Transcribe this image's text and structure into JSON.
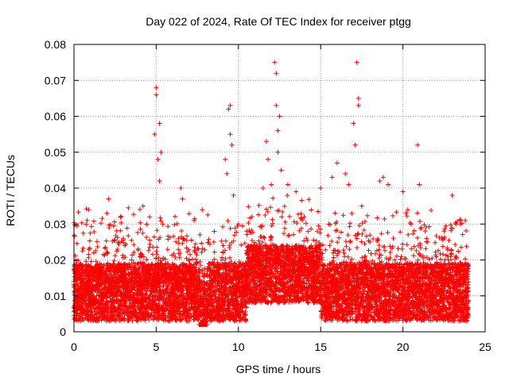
{
  "chart_data": {
    "type": "scatter",
    "title": "Day 022 of 2024, Rate Of TEC Index for receiver ptgg",
    "xlabel": "GPS time / hours",
    "ylabel": "ROTI / TECUs",
    "xlim": [
      0,
      25
    ],
    "ylim": [
      0,
      0.08
    ],
    "x_ticks": [
      "0",
      "5",
      "10",
      "15",
      "20",
      "25"
    ],
    "y_ticks": [
      "0",
      "0.01",
      "0.02",
      "0.03",
      "0.04",
      "0.05",
      "0.06",
      "0.07",
      "0.08"
    ],
    "grid": true,
    "marker": "+",
    "color": "#ff0000",
    "series": [
      {
        "points": [
          [
            0.3,
            0.008
          ],
          [
            0.5,
            0.012
          ],
          [
            0.8,
            0.031
          ],
          [
            0.9,
            0.034
          ],
          [
            1.2,
            0.022
          ],
          [
            1.5,
            0.018
          ],
          [
            2.0,
            0.033
          ],
          [
            2.1,
            0.037
          ],
          [
            2.5,
            0.015
          ],
          [
            3.0,
            0.026
          ],
          [
            3.5,
            0.02
          ],
          [
            4.2,
            0.035
          ],
          [
            4.6,
            0.032
          ],
          [
            4.9,
            0.055
          ],
          [
            5.0,
            0.068
          ],
          [
            5.0,
            0.066
          ],
          [
            5.1,
            0.048
          ],
          [
            5.2,
            0.058
          ],
          [
            5.3,
            0.05
          ],
          [
            5.2,
            0.042
          ],
          [
            5.4,
            0.03
          ],
          [
            5.8,
            0.018
          ],
          [
            6.5,
            0.04
          ],
          [
            6.6,
            0.037
          ],
          [
            7.0,
            0.02
          ],
          [
            7.5,
            0.012
          ],
          [
            7.8,
            0.034
          ],
          [
            8.2,
            0.01
          ],
          [
            8.5,
            0.025
          ],
          [
            9.0,
            0.02
          ],
          [
            9.2,
            0.048
          ],
          [
            9.3,
            0.044
          ],
          [
            9.4,
            0.062
          ],
          [
            9.5,
            0.063
          ],
          [
            9.5,
            0.055
          ],
          [
            9.6,
            0.052
          ],
          [
            9.7,
            0.038
          ],
          [
            10.0,
            0.03
          ],
          [
            10.5,
            0.028
          ],
          [
            11.0,
            0.02
          ],
          [
            11.5,
            0.04
          ],
          [
            11.7,
            0.053
          ],
          [
            11.8,
            0.048
          ],
          [
            12.0,
            0.041
          ],
          [
            12.2,
            0.075
          ],
          [
            12.3,
            0.072
          ],
          [
            12.3,
            0.063
          ],
          [
            12.4,
            0.056
          ],
          [
            12.4,
            0.05
          ],
          [
            12.5,
            0.06
          ],
          [
            12.6,
            0.045
          ],
          [
            13.0,
            0.041
          ],
          [
            13.5,
            0.039
          ],
          [
            14.0,
            0.032
          ],
          [
            14.5,
            0.022
          ],
          [
            15.0,
            0.04
          ],
          [
            15.5,
            0.03
          ],
          [
            15.7,
            0.043
          ],
          [
            16.0,
            0.047
          ],
          [
            16.5,
            0.044
          ],
          [
            16.7,
            0.041
          ],
          [
            17.0,
            0.058
          ],
          [
            17.1,
            0.052
          ],
          [
            17.2,
            0.075
          ],
          [
            17.3,
            0.065
          ],
          [
            17.3,
            0.063
          ],
          [
            17.5,
            0.035
          ],
          [
            18.0,
            0.025
          ],
          [
            18.6,
            0.042
          ],
          [
            18.8,
            0.043
          ],
          [
            19.1,
            0.041
          ],
          [
            19.5,
            0.02
          ],
          [
            20.0,
            0.039
          ],
          [
            20.3,
            0.034
          ],
          [
            20.5,
            0.03
          ],
          [
            20.9,
            0.052
          ],
          [
            21.0,
            0.041
          ],
          [
            21.5,
            0.025
          ],
          [
            22.0,
            0.018
          ],
          [
            22.5,
            0.028
          ],
          [
            23.0,
            0.038
          ],
          [
            23.5,
            0.03
          ],
          [
            23.9,
            0.012
          ],
          [
            0.1,
            0.006
          ],
          [
            0.2,
            0.015
          ],
          [
            1.0,
            0.009
          ],
          [
            2.8,
            0.011
          ],
          [
            4.0,
            0.013
          ],
          [
            6.0,
            0.01
          ],
          [
            7.2,
            0.008
          ],
          [
            10.2,
            0.016
          ],
          [
            11.2,
            0.018
          ],
          [
            13.2,
            0.015
          ],
          [
            14.8,
            0.012
          ],
          [
            16.2,
            0.01
          ],
          [
            18.2,
            0.009
          ],
          [
            19.8,
            0.007
          ],
          [
            21.2,
            0.008
          ],
          [
            22.8,
            0.01
          ],
          [
            23.7,
            0.006
          ]
        ]
      }
    ]
  }
}
